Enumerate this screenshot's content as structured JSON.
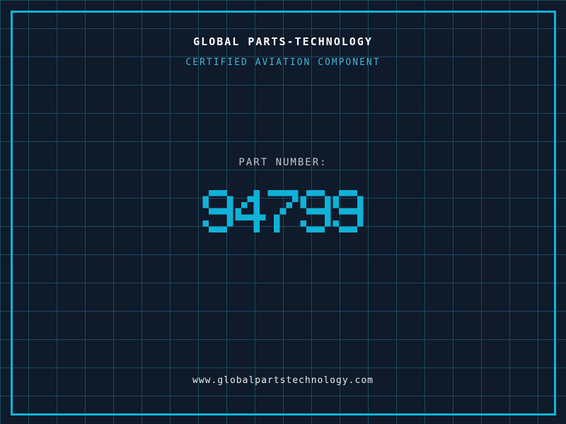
{
  "theme": {
    "bg": "#0f1a2a",
    "grid": "#1a4a60",
    "frame": "#0fb4d8",
    "digit": "#10b2d8",
    "tagline": "#44b4d6",
    "label": "#c2c8ce",
    "title": "#ffffff",
    "url": "#e8eaec"
  },
  "header": {
    "company_name": "GLOBAL PARTS-TECHNOLOGY",
    "tagline": "CERTIFIED AVIATION COMPONENT"
  },
  "part": {
    "label": "PART NUMBER:",
    "number": "94799"
  },
  "footer": {
    "website": "www.globalpartstechnology.com"
  }
}
